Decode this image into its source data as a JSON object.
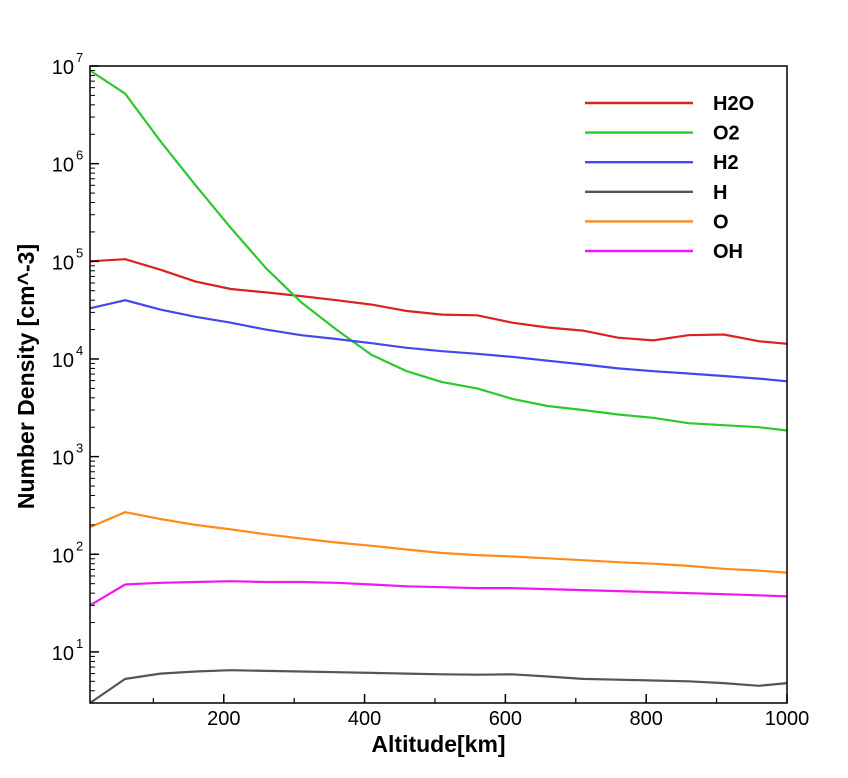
{
  "chart_data": {
    "type": "line",
    "title": "",
    "xlabel": "Altitude[km]",
    "ylabel": "Number Density [cm^-3]",
    "xlim": [
      10,
      1000
    ],
    "ylim": [
      3,
      10000000
    ],
    "yscale": "log",
    "xticks": [
      200,
      400,
      600,
      800,
      1000
    ],
    "xtick_labels": [
      "200",
      "400",
      "600",
      "800",
      "1000"
    ],
    "yticks": [
      10,
      100,
      1000,
      10000,
      100000,
      1000000,
      10000000
    ],
    "ytick_base_label": "10",
    "ytick_exponents": [
      "1",
      "2",
      "3",
      "4",
      "5",
      "6",
      "7"
    ],
    "grid": false,
    "legend_position": "top-right",
    "x": [
      10,
      60,
      110,
      160,
      210,
      260,
      310,
      360,
      410,
      460,
      510,
      560,
      610,
      660,
      710,
      760,
      810,
      860,
      910,
      960,
      1000
    ],
    "series": [
      {
        "name": "H2O",
        "color": "#d92323",
        "values": [
          100000,
          105000,
          82000,
          62000,
          52000,
          48000,
          44000,
          40000,
          36000,
          31000,
          28500,
          28000,
          23500,
          21000,
          19500,
          16500,
          15500,
          17500,
          17800,
          15200,
          14300
        ]
      },
      {
        "name": "O2",
        "color": "#2dc82d",
        "values": [
          9000000,
          5200000,
          1700000,
          600000,
          220000,
          85000,
          38000,
          20000,
          11000,
          7500,
          5800,
          5000,
          3900,
          3300,
          3000,
          2700,
          2500,
          2200,
          2100,
          2000,
          1850
        ]
      },
      {
        "name": "H2",
        "color": "#4646ee",
        "values": [
          33000,
          40000,
          32000,
          27000,
          23500,
          20000,
          17500,
          16000,
          14500,
          13000,
          12000,
          11300,
          10500,
          9600,
          8800,
          8000,
          7500,
          7100,
          6700,
          6300,
          5900
        ]
      },
      {
        "name": "H",
        "color": "#555555",
        "values": [
          3.0,
          5.3,
          6.0,
          6.3,
          6.5,
          6.4,
          6.3,
          6.2,
          6.1,
          6.0,
          5.9,
          5.85,
          5.9,
          5.6,
          5.3,
          5.2,
          5.1,
          5.0,
          4.8,
          4.5,
          4.8
        ]
      },
      {
        "name": "O",
        "color": "#ff8c1a",
        "values": [
          190,
          270,
          230,
          200,
          180,
          160,
          145,
          132,
          122,
          112,
          103,
          98,
          95,
          91,
          87,
          83,
          80,
          76,
          71,
          68,
          65
        ]
      },
      {
        "name": "OH",
        "color": "#f018f0",
        "values": [
          30,
          49,
          51,
          52,
          53,
          52,
          52,
          51,
          49,
          47,
          46,
          45,
          45,
          44,
          43,
          42,
          41,
          40,
          39,
          38,
          37
        ]
      }
    ]
  }
}
